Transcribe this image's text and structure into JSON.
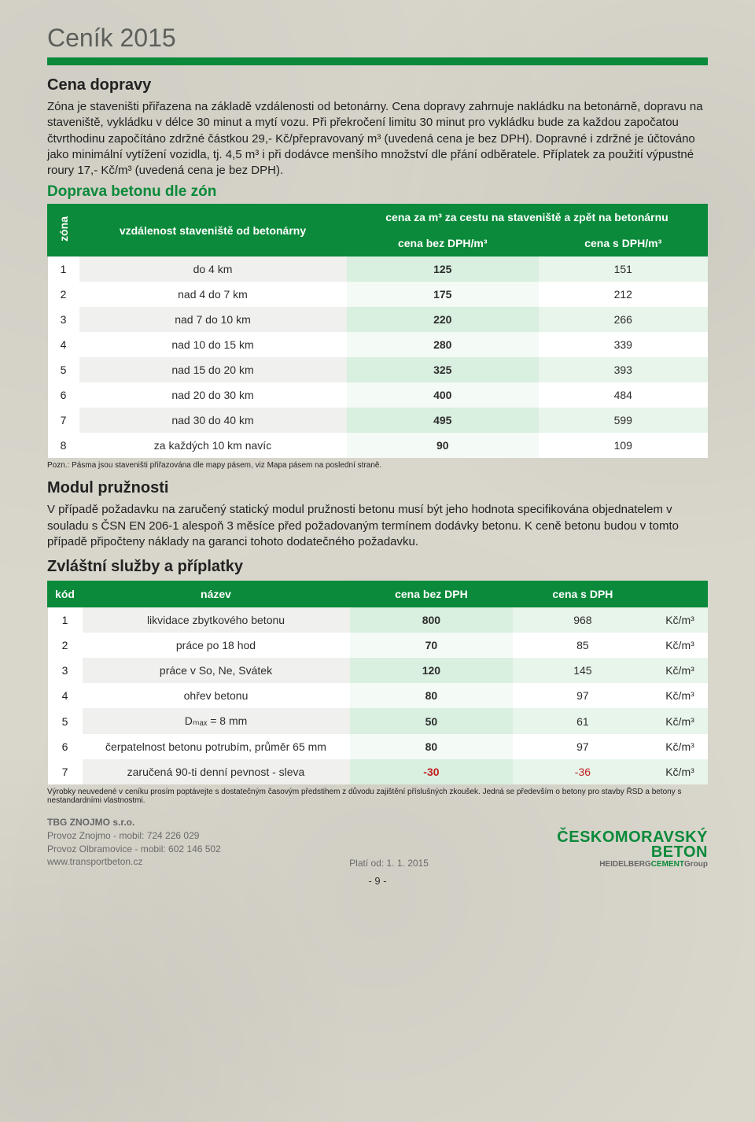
{
  "page": {
    "title": "Ceník 2015",
    "accent_color": "#0a8a3a",
    "background_color": "#d9d6cc",
    "page_number": "- 9 -"
  },
  "section_doprava": {
    "heading": "Cena dopravy",
    "text": "Zóna je staveništi přiřazena na základě vzdálenosti od betonárny. Cena dopravy zahrnuje nakládku na betonárně, dopravu na staveniště, vykládku v délce 30 minut a mytí vozu. Při překročení limitu 30 minut pro vykládku bude za každou započatou čtvrthodinu započítáno zdržné částkou 29,- Kč/přepravovaný m³ (uvedená cena je bez DPH). Dopravné i zdržné je účtováno jako minimální vytížení vozidla, tj. 4,5 m³ i při dodávce menšího množství dle přání odběratele. Příplatek za použití výpustné roury 17,- Kč/m³ (uvedená cena je bez DPH)."
  },
  "zones_table": {
    "title": "Doprava betonu dle zón",
    "head": {
      "zona": "zóna",
      "vzdalenost": "vzdálenost staveniště od betonárny",
      "cena_group": "cena za m³ za cestu na staveniště a zpět na betonárnu",
      "cena_bez": "cena bez DPH/m³",
      "cena_s": "cena s DPH/m³"
    },
    "rows": [
      {
        "z": "1",
        "d": "do 4 km",
        "p1": "125",
        "p2": "151"
      },
      {
        "z": "2",
        "d": "nad 4 do 7 km",
        "p1": "175",
        "p2": "212"
      },
      {
        "z": "3",
        "d": "nad 7 do 10 km",
        "p1": "220",
        "p2": "266"
      },
      {
        "z": "4",
        "d": "nad 10 do 15 km",
        "p1": "280",
        "p2": "339"
      },
      {
        "z": "5",
        "d": "nad 15 do 20 km",
        "p1": "325",
        "p2": "393"
      },
      {
        "z": "6",
        "d": "nad 20 do 30 km",
        "p1": "400",
        "p2": "484"
      },
      {
        "z": "7",
        "d": "nad 30 do 40 km",
        "p1": "495",
        "p2": "599"
      },
      {
        "z": "8",
        "d": "za každých 10 km navíc",
        "p1": "90",
        "p2": "109"
      }
    ],
    "note": "Pozn.: Pásma jsou staveništi přiřazována dle mapy pásem, viz Mapa pásem na poslední straně."
  },
  "modul": {
    "heading": "Modul pružnosti",
    "text": "V případě požadavku na zaručený statický modul pružnosti betonu musí být jeho hodnota specifikována objednatelem v souladu s ČSN EN 206-1 alespoň 3 měsíce před požadovaným termínem dodávky betonu. K ceně betonu budou v tomto případě připočteny náklady na garanci tohoto dodatečného požadavku."
  },
  "services_table": {
    "title": "Zvláštní služby a příplatky",
    "head": {
      "kod": "kód",
      "nazev": "název",
      "cena_bez": "cena bez DPH",
      "cena_s": "cena s DPH"
    },
    "unit": "Kč/m³",
    "rows": [
      {
        "k": "1",
        "n": "likvidace zbytkového betonu",
        "p1": "800",
        "p2": "968"
      },
      {
        "k": "2",
        "n": "práce po 18 hod",
        "p1": "70",
        "p2": "85"
      },
      {
        "k": "3",
        "n": "práce v So, Ne, Svátek",
        "p1": "120",
        "p2": "145"
      },
      {
        "k": "4",
        "n": "ohřev betonu",
        "p1": "80",
        "p2": "97"
      },
      {
        "k": "5",
        "n": "Dₘₐₓ = 8 mm",
        "p1": "50",
        "p2": "61"
      },
      {
        "k": "6",
        "n": "čerpatelnost betonu potrubím, průměr 65 mm",
        "p1": "80",
        "p2": "97"
      },
      {
        "k": "7",
        "n": "zaručená 90-ti denní pevnost - sleva",
        "p1": "-30",
        "p2": "-36",
        "neg": true
      }
    ],
    "note": "Výrobky neuvedené v ceníku prosím poptávejte s dostatečným časovým předstihem z důvodu zajištění příslušných zkoušek. Jedná se především o betony pro stavby ŘSD a betony s nestandardními vlastnostmi."
  },
  "footer": {
    "company": "TBG ZNOJMO s.r.o.",
    "line1": "Provoz Znojmo - mobil: 724 226 029",
    "line2": "Provoz Olbramovice - mobil: 602 146 502",
    "web": "www.transportbeton.cz",
    "valid": "Platí od: 1. 1. 2015",
    "logo_line1": "ČESKOMORAVSKÝ",
    "logo_line2": "BETON",
    "logo_sub_prefix": "HEIDELBERG",
    "logo_sub_mid": "CEMENT",
    "logo_sub_suffix": "Group"
  }
}
